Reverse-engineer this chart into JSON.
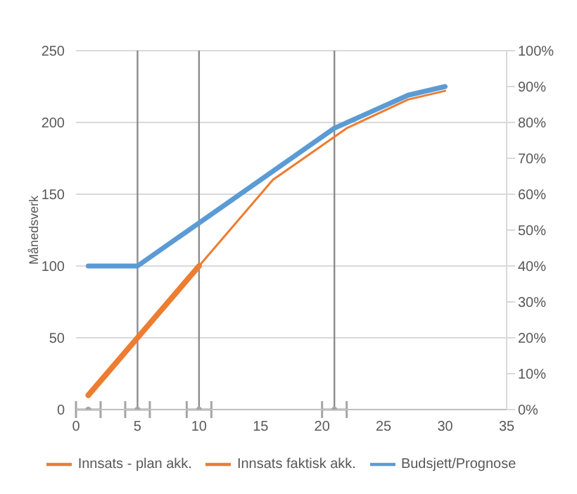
{
  "chart_data": {
    "type": "line",
    "ylabel": "Månedsverk",
    "series": [
      {
        "name": "Innsats  - plan akk.",
        "color": "#ed7d31",
        "x": [
          1,
          5,
          10
        ],
        "values": [
          10,
          50,
          100
        ]
      },
      {
        "name": "Innsats faktisk akk.",
        "color": "#ed7d31",
        "x": [
          10,
          16,
          22,
          27,
          30
        ],
        "values": [
          100,
          160,
          196,
          216,
          222
        ]
      },
      {
        "name": "Budsjett/Prognose",
        "color": "#5b9bd5",
        "x": [
          1,
          5,
          10,
          21,
          27,
          30
        ],
        "values": [
          100,
          100,
          130,
          196,
          219,
          225
        ]
      },
      {
        "type": "scatter",
        "color": "#a5a5a5",
        "x": [
          1,
          5,
          10,
          21
        ],
        "values": [
          0,
          0,
          0,
          0
        ],
        "xerrors": [
          1,
          1,
          1,
          1
        ]
      }
    ],
    "xlim": [
      0,
      35
    ],
    "xticks": [
      0,
      5,
      10,
      15,
      20,
      25,
      30,
      35
    ],
    "ylim": [
      0,
      250
    ],
    "yticks": [
      0,
      50,
      100,
      150,
      200,
      250
    ],
    "y2lim": [
      0,
      100
    ],
    "y2ticks": [
      {
        "value": 0,
        "label": "0%"
      },
      {
        "value": 10,
        "label": "10%"
      },
      {
        "value": 20,
        "label": "20%"
      },
      {
        "value": 30,
        "label": "30%"
      },
      {
        "value": 40,
        "label": "40%"
      },
      {
        "value": 50,
        "label": "50%"
      },
      {
        "value": 60,
        "label": "60%"
      },
      {
        "value": 70,
        "label": "70%"
      },
      {
        "value": 80,
        "label": "80%"
      },
      {
        "value": 90,
        "label": "90%"
      },
      {
        "value": 100,
        "label": "100%"
      }
    ],
    "ref_lines": [
      {
        "axis": "x",
        "value": 5,
        "color": "#8c8c8c"
      },
      {
        "axis": "x",
        "value": 10,
        "color": "#8c8c8c"
      },
      {
        "axis": "x",
        "value": 21,
        "color": "#8c8c8c"
      }
    ],
    "grid": "y",
    "legend": "bottom"
  }
}
